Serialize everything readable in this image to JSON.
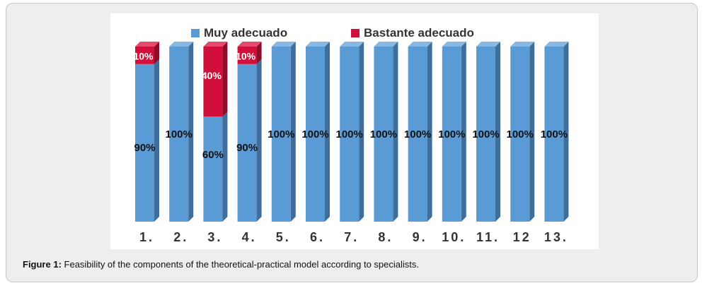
{
  "caption": {
    "label": "Figure 1:",
    "text": " Feasibility of the components of the theoretical-practical model according to specialists."
  },
  "colors": {
    "muy": "#5b9bd5",
    "muy_side": "#3e6e99",
    "muy_top": "#87b7e3",
    "bastante": "#d0103a",
    "bastante_side": "#8f0b28",
    "bastante_top": "#e54a6d"
  },
  "chart_data": {
    "type": "bar",
    "stacked": true,
    "categories": [
      "1.",
      "2.",
      "3.",
      "4.",
      "5.",
      "6.",
      "7.",
      "8.",
      "9.",
      "10.",
      "11.",
      "12",
      "13."
    ],
    "series": [
      {
        "name": "Muy adecuado",
        "values": [
          90,
          100,
          60,
          90,
          100,
          100,
          100,
          100,
          100,
          100,
          100,
          100,
          100
        ],
        "labels": [
          "90%",
          "100%",
          "60%",
          "90%",
          "100%",
          "100%",
          "100%",
          "100%",
          "100%",
          "100%",
          "100%",
          "100%",
          "100%"
        ]
      },
      {
        "name": "Bastante adecuado",
        "values": [
          10,
          0,
          40,
          10,
          0,
          0,
          0,
          0,
          0,
          0,
          0,
          0,
          0
        ],
        "labels": [
          "10%",
          "",
          "40%",
          "10%",
          "",
          "",
          "",
          "",
          "",
          "",
          "",
          "",
          ""
        ]
      }
    ],
    "ylim": [
      0,
      100
    ],
    "legend": "top",
    "grid": false
  }
}
